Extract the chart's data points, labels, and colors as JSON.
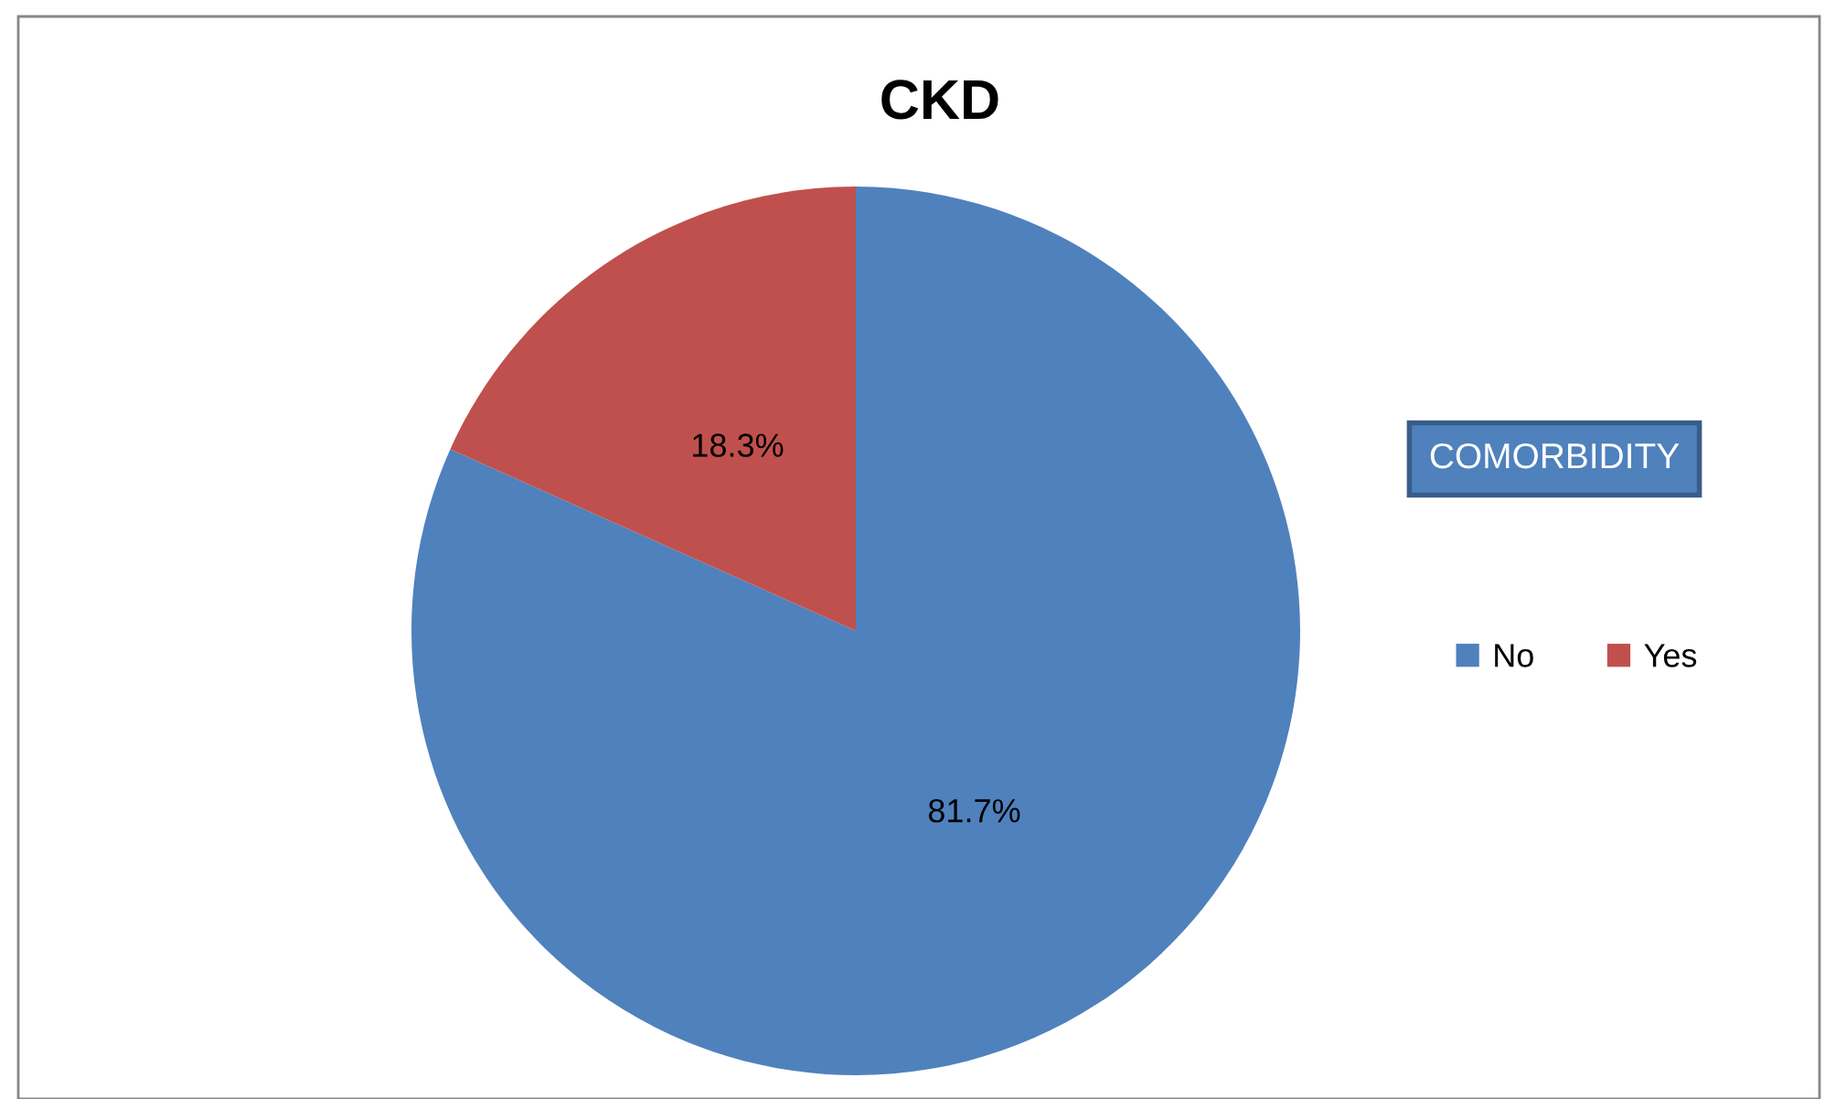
{
  "chart_data": {
    "type": "pie",
    "title": "CKD",
    "legend_title": "COMORBIDITY",
    "categories": [
      "No",
      "Yes"
    ],
    "values": [
      81.7,
      18.3
    ],
    "colors": [
      "#4f81bd",
      "#c0504d"
    ],
    "value_labels": [
      "81.7%",
      "18.3%"
    ],
    "legend": "right"
  }
}
